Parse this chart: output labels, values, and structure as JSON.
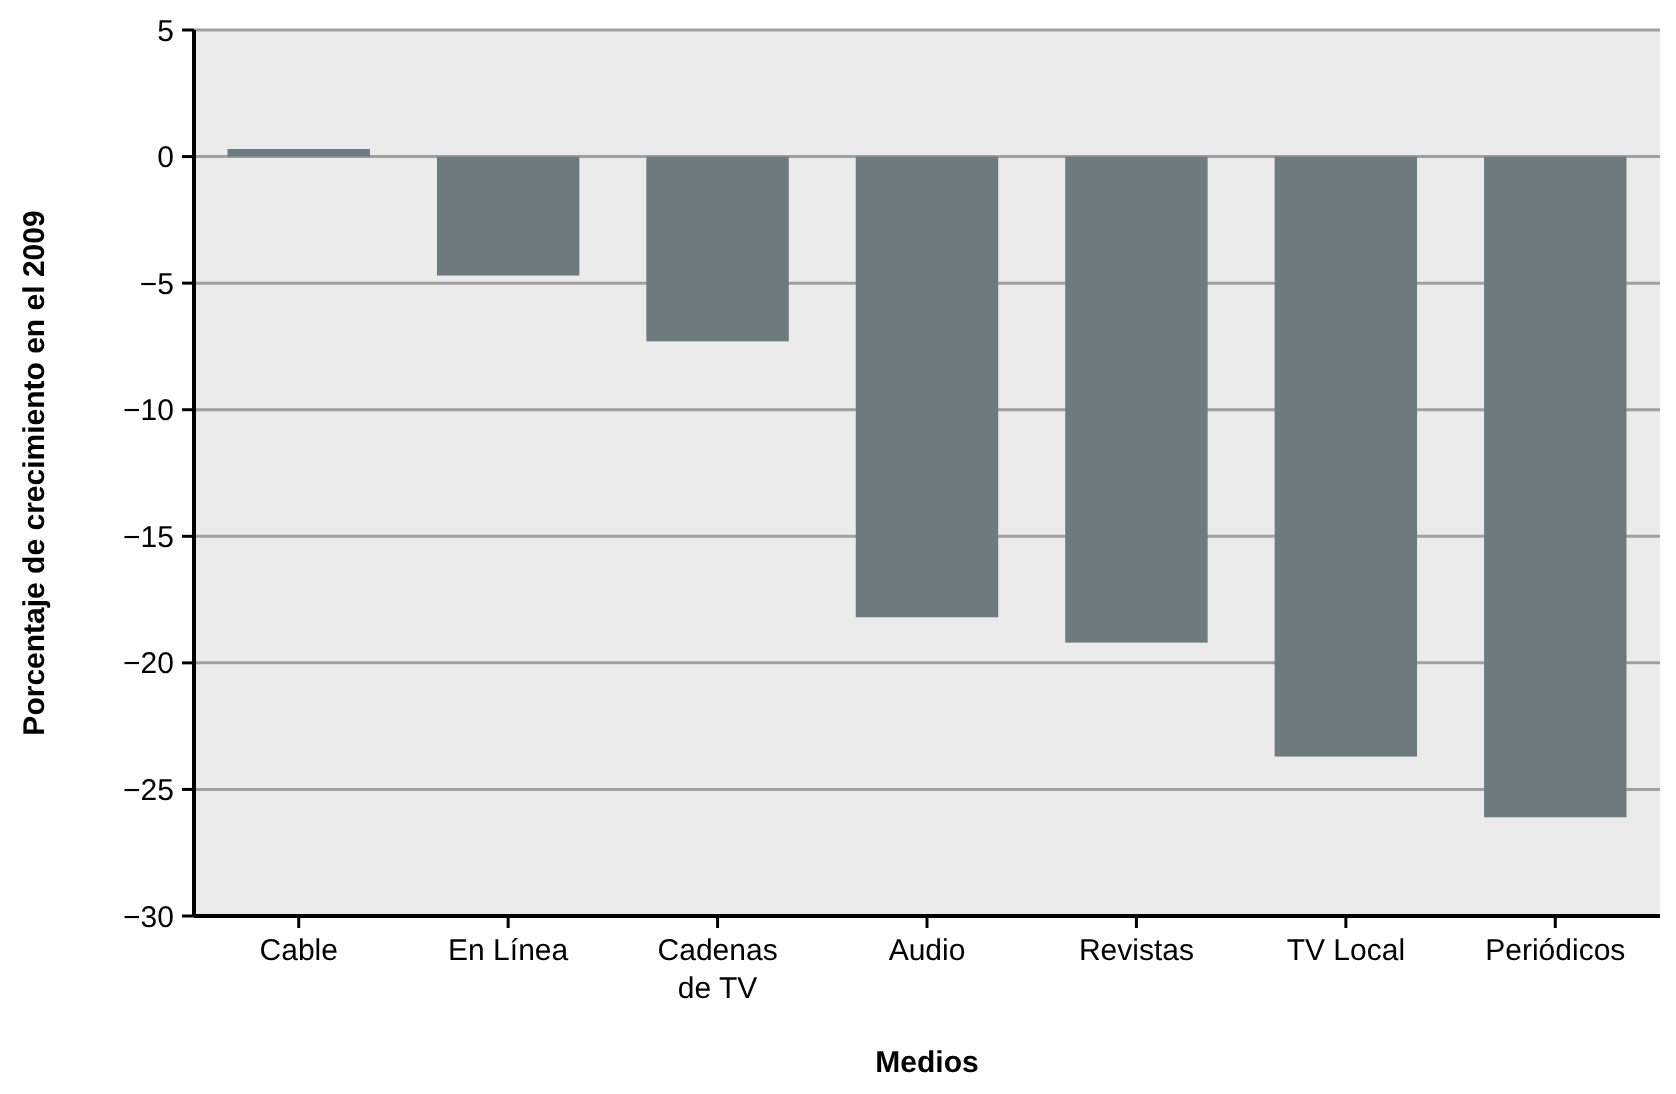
{
  "chart_data": {
    "type": "bar",
    "xlabel": "Medios",
    "ylabel": "Porcentaje de crecimiento en el 2009",
    "categories": [
      "Cable",
      "En Línea",
      "Cadenas de TV",
      "Audio",
      "Revistas",
      "TV Local",
      "Periódicos"
    ],
    "values": [
      0.3,
      -4.7,
      -7.3,
      -18.2,
      -19.2,
      -23.7,
      -26.1
    ],
    "color": "#6c7b80",
    "ylim": [
      -30,
      5
    ],
    "yticks": [
      -30,
      -25,
      -20,
      -15,
      -10,
      -5,
      0,
      5
    ],
    "grid": "y"
  }
}
